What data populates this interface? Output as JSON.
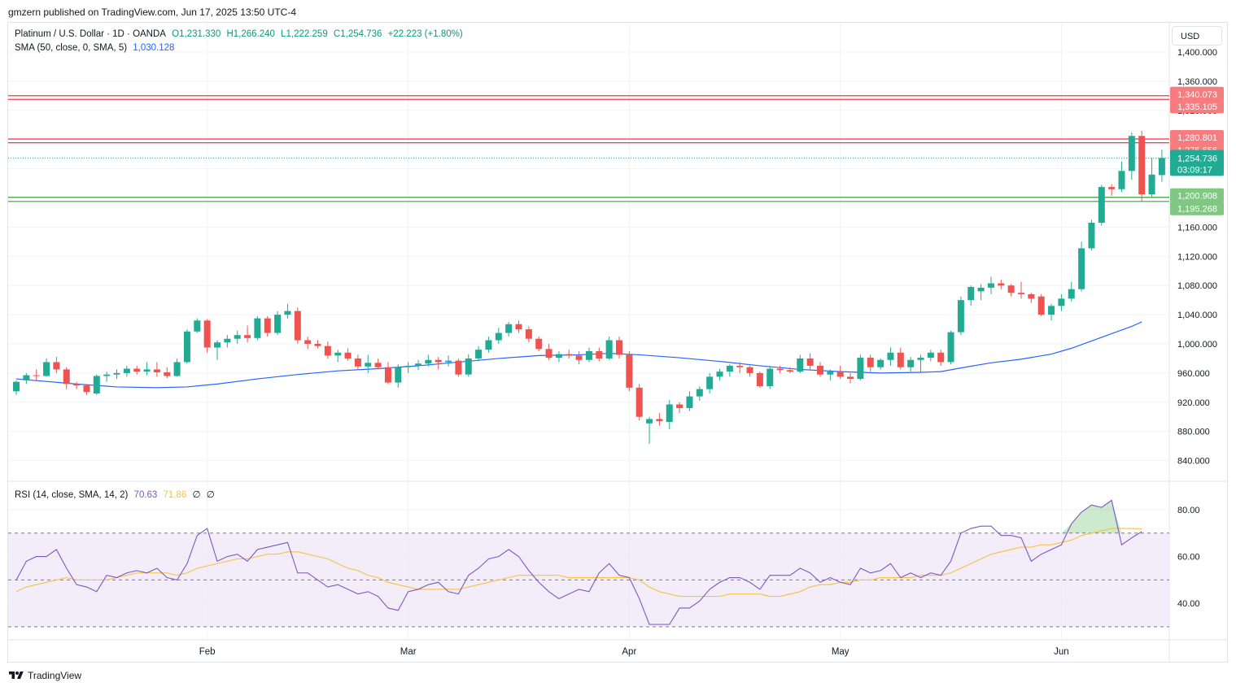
{
  "header": {
    "published_text": "gmzern published on TradingView.com, Jun 17, 2025 13:50 UTC-4"
  },
  "legend": {
    "symbol": "Platinum / U.S. Dollar · 1D · OANDA",
    "open": "O1,231.330",
    "high": "H1,266.240",
    "low": "L1,222.259",
    "close": "C1,254.736",
    "change": "+22.223 (+1.80%)",
    "sma_label": "SMA (50, close, 0, SMA, 5)",
    "sma_value": "1,030.128",
    "rsi_label": "RSI (14, close, SMA, 14, 2)",
    "rsi_value": "70.63",
    "rsi_sma_value": "71.86",
    "rsi_extra1": "∅",
    "rsi_extra2": "∅"
  },
  "currency_button": "USD",
  "footer": {
    "brand": "TradingView",
    "icon": "tradingview-logo-icon"
  },
  "colors": {
    "up": "#22ab94",
    "down": "#f23645",
    "down_candle": "#ef5350",
    "sma": "#2962ff",
    "rsi": "#7e57c2",
    "rsi_sma": "#f7c23f",
    "rsi_band": "#ede7f6",
    "resistance": "#f23645",
    "support": "#4caf50",
    "grid": "#f0f3fa"
  },
  "chart_data": [
    {
      "type": "candlestick",
      "title": "Platinum / U.S. Dollar · 1D · OANDA",
      "ylim": [
        810,
        1400
      ],
      "y_ticks": [
        840,
        880,
        920,
        960,
        1000,
        1040,
        1080,
        1120,
        1160,
        1320,
        1400
      ],
      "y_tick_labels": [
        "840.000",
        "880.000",
        "920.000",
        "960.000",
        "1,000.000",
        "1,040.000",
        "1,080.000",
        "1,120.000",
        "1,160.000",
        "1,320.000",
        "1,400.000"
      ],
      "x_labels": [
        {
          "label": "Feb",
          "index": 19
        },
        {
          "label": "Mar",
          "index": 39
        },
        {
          "label": "Apr",
          "index": 61
        },
        {
          "label": "May",
          "index": 82
        },
        {
          "label": "Jun",
          "index": 104
        }
      ],
      "candles": [
        [
          935,
          950,
          930,
          948
        ],
        [
          950,
          960,
          945,
          957
        ],
        [
          957,
          965,
          950,
          956
        ],
        [
          956,
          980,
          955,
          975
        ],
        [
          975,
          982,
          960,
          965
        ],
        [
          965,
          968,
          938,
          945
        ],
        [
          945,
          948,
          938,
          943
        ],
        [
          943,
          945,
          930,
          934
        ],
        [
          932,
          958,
          930,
          956
        ],
        [
          956,
          962,
          948,
          958
        ],
        [
          958,
          965,
          952,
          960
        ],
        [
          960,
          970,
          955,
          966
        ],
        [
          966,
          970,
          958,
          962
        ],
        [
          962,
          975,
          957,
          965
        ],
        [
          965,
          975,
          955,
          961
        ],
        [
          961,
          968,
          953,
          956
        ],
        [
          956,
          980,
          955,
          975
        ],
        [
          975,
          1020,
          973,
          1017
        ],
        [
          1017,
          1035,
          1015,
          1032
        ],
        [
          1032,
          1034,
          988,
          995
        ],
        [
          995,
          1005,
          978,
          1002
        ],
        [
          1002,
          1012,
          995,
          1007
        ],
        [
          1007,
          1018,
          1000,
          1012
        ],
        [
          1012,
          1025,
          1002,
          1008
        ],
        [
          1008,
          1038,
          1005,
          1035
        ],
        [
          1035,
          1038,
          1010,
          1015
        ],
        [
          1015,
          1045,
          1012,
          1040
        ],
        [
          1040,
          1055,
          1035,
          1045
        ],
        [
          1045,
          1050,
          1000,
          1005
        ],
        [
          1005,
          1010,
          993,
          1000
        ],
        [
          1000,
          1005,
          994,
          997
        ],
        [
          997,
          1003,
          980,
          984
        ],
        [
          984,
          992,
          975,
          988
        ],
        [
          988,
          994,
          977,
          980
        ],
        [
          980,
          985,
          965,
          969
        ],
        [
          969,
          985,
          960,
          974
        ],
        [
          974,
          980,
          965,
          968
        ],
        [
          968,
          975,
          945,
          947
        ],
        [
          947,
          972,
          940,
          968
        ],
        [
          968,
          975,
          960,
          970
        ],
        [
          970,
          978,
          964,
          973
        ],
        [
          973,
          985,
          969,
          978
        ],
        [
          978,
          982,
          965,
          975
        ],
        [
          975,
          984,
          969,
          977
        ],
        [
          977,
          980,
          955,
          958
        ],
        [
          958,
          986,
          955,
          980
        ],
        [
          980,
          997,
          976,
          992
        ],
        [
          992,
          1010,
          988,
          1005
        ],
        [
          1005,
          1022,
          1000,
          1015
        ],
        [
          1015,
          1030,
          1010,
          1027
        ],
        [
          1027,
          1032,
          1015,
          1020
        ],
        [
          1020,
          1024,
          1002,
          1007
        ],
        [
          1007,
          1010,
          990,
          993
        ],
        [
          993,
          1000,
          978,
          981
        ],
        [
          981,
          990,
          975,
          986
        ],
        [
          986,
          992,
          980,
          984
        ],
        [
          984,
          990,
          972,
          978
        ],
        [
          978,
          995,
          975,
          990
        ],
        [
          990,
          995,
          976,
          980
        ],
        [
          980,
          1010,
          978,
          1005
        ],
        [
          1005,
          1010,
          980,
          985
        ],
        [
          985,
          990,
          935,
          940
        ],
        [
          940,
          945,
          895,
          900
        ],
        [
          891,
          900,
          863,
          897
        ],
        [
          897,
          905,
          888,
          894
        ],
        [
          893,
          923,
          883,
          917
        ],
        [
          917,
          920,
          905,
          912
        ],
        [
          912,
          935,
          908,
          928
        ],
        [
          928,
          942,
          922,
          938
        ],
        [
          938,
          960,
          932,
          955
        ],
        [
          955,
          966,
          950,
          962
        ],
        [
          962,
          972,
          955,
          970
        ],
        [
          970,
          975,
          960,
          968
        ],
        [
          968,
          970,
          955,
          960
        ],
        [
          960,
          962,
          940,
          942
        ],
        [
          942,
          970,
          938,
          966
        ],
        [
          966,
          970,
          960,
          964
        ],
        [
          964,
          968,
          960,
          962
        ],
        [
          962,
          985,
          960,
          980
        ],
        [
          980,
          987,
          965,
          970
        ],
        [
          970,
          975,
          955,
          958
        ],
        [
          958,
          965,
          950,
          962
        ],
        [
          962,
          970,
          952,
          955
        ],
        [
          955,
          960,
          946,
          952
        ],
        [
          952,
          985,
          950,
          981
        ],
        [
          981,
          985,
          962,
          968
        ],
        [
          968,
          980,
          965,
          978
        ],
        [
          978,
          995,
          970,
          988
        ],
        [
          988,
          995,
          965,
          968
        ],
        [
          968,
          982,
          962,
          978
        ],
        [
          978,
          985,
          960,
          981
        ],
        [
          981,
          992,
          976,
          988
        ],
        [
          988,
          992,
          970,
          975
        ],
        [
          975,
          1018,
          972,
          1016
        ],
        [
          1016,
          1065,
          1012,
          1060
        ],
        [
          1060,
          1080,
          1052,
          1078
        ],
        [
          1072,
          1082,
          1060,
          1077
        ],
        [
          1077,
          1092,
          1068,
          1083
        ],
        [
          1083,
          1088,
          1075,
          1080
        ],
        [
          1080,
          1082,
          1065,
          1070
        ],
        [
          1070,
          1085,
          1062,
          1068
        ],
        [
          1068,
          1070,
          1056,
          1062
        ],
        [
          1065,
          1068,
          1038,
          1040
        ],
        [
          1040,
          1055,
          1032,
          1052
        ],
        [
          1052,
          1068,
          1045,
          1062
        ],
        [
          1062,
          1085,
          1058,
          1075
        ],
        [
          1075,
          1140,
          1072,
          1131
        ],
        [
          1131,
          1170,
          1128,
          1166
        ],
        [
          1166,
          1218,
          1162,
          1215
        ],
        [
          1215,
          1219,
          1203,
          1212
        ],
        [
          1212,
          1250,
          1208,
          1237
        ],
        [
          1237,
          1290,
          1225,
          1285
        ],
        [
          1285,
          1292,
          1195,
          1205
        ],
        [
          1205,
          1255,
          1200,
          1232
        ],
        [
          1231.33,
          1266.24,
          1222.259,
          1254.736
        ]
      ],
      "sma50": [
        [
          0,
          952
        ],
        [
          6,
          945
        ],
        [
          10,
          941
        ],
        [
          14,
          940
        ],
        [
          17,
          941
        ],
        [
          20,
          945
        ],
        [
          24,
          952
        ],
        [
          28,
          958
        ],
        [
          32,
          963
        ],
        [
          36,
          966
        ],
        [
          40,
          970
        ],
        [
          44,
          975
        ],
        [
          48,
          980
        ],
        [
          52,
          984
        ],
        [
          56,
          985
        ],
        [
          59,
          987
        ],
        [
          62,
          985
        ],
        [
          66,
          981
        ],
        [
          70,
          976
        ],
        [
          74,
          970
        ],
        [
          78,
          965
        ],
        [
          82,
          962
        ],
        [
          86,
          960
        ],
        [
          90,
          961
        ],
        [
          92,
          962
        ],
        [
          94,
          967
        ],
        [
          97,
          974
        ],
        [
          100,
          979
        ],
        [
          103,
          986
        ],
        [
          105,
          994
        ],
        [
          107,
          1004
        ],
        [
          109,
          1014
        ],
        [
          111,
          1024
        ],
        [
          112,
          1030.128
        ]
      ],
      "horizontal_levels": [
        {
          "value": 1340.073,
          "label": "1,340.073",
          "kind": "resistance"
        },
        {
          "value": 1335.105,
          "label": "1,335.105",
          "kind": "resistance"
        },
        {
          "value": 1280.801,
          "label": "1,280.801",
          "kind": "resistance"
        },
        {
          "value": 1275.656,
          "label": "1,275.656",
          "kind": "resistance"
        },
        {
          "value": 1254.736,
          "label": "1,254.736",
          "kind": "last-price",
          "sublabel": "03:09:17"
        },
        {
          "value": 1200.908,
          "label": "1,200.908",
          "kind": "support"
        },
        {
          "value": 1195.268,
          "label": "1,195.268",
          "kind": "support"
        }
      ]
    },
    {
      "type": "line",
      "title": "RSI (14, close, SMA, 14, 2)",
      "ylim": [
        25,
        90
      ],
      "y_ticks": [
        40,
        60,
        80
      ],
      "y_tick_labels": [
        "40.00",
        "60.00",
        "80.00"
      ],
      "band": [
        30,
        70
      ],
      "midline": 50,
      "series": [
        {
          "name": "RSI",
          "values": [
            50,
            58,
            60,
            60,
            63,
            55,
            48,
            47,
            45,
            52,
            51,
            53,
            54,
            53,
            55,
            51,
            50,
            57,
            69,
            72,
            58,
            60,
            61,
            58,
            63,
            64,
            65,
            66,
            53,
            53,
            50,
            47,
            48,
            46,
            44,
            45,
            43,
            38,
            37,
            45,
            46,
            48,
            49,
            45,
            44,
            52,
            55,
            59,
            60,
            63,
            60,
            54,
            49,
            45,
            42,
            44,
            46,
            45,
            53,
            57,
            52,
            51,
            42,
            31,
            31,
            31,
            38,
            38,
            41,
            46,
            49,
            51,
            51,
            49,
            46,
            52,
            52,
            52,
            55,
            53,
            49,
            51,
            49,
            48,
            55,
            53,
            54,
            57,
            51,
            53,
            51,
            53,
            52,
            58,
            70,
            72,
            73,
            73,
            69,
            69,
            68,
            58,
            61,
            63,
            65,
            74,
            79,
            82,
            81,
            84,
            65,
            68,
            70.63
          ]
        },
        {
          "name": "RSI SMA",
          "values": [
            45,
            47,
            48,
            49,
            50,
            51,
            50,
            50,
            50,
            50,
            51,
            52,
            53,
            53,
            53,
            53,
            52,
            53,
            55,
            56,
            57,
            58,
            59,
            59,
            60,
            61,
            61,
            62,
            62,
            61,
            60,
            59,
            57,
            55,
            54,
            52,
            51,
            49,
            48,
            47,
            46,
            46,
            46,
            46,
            46,
            47,
            48,
            49,
            50,
            51,
            52,
            52,
            52,
            52,
            52,
            51,
            51,
            51,
            51,
            51,
            51,
            51,
            50,
            47,
            45,
            44,
            43,
            43,
            43,
            43,
            43,
            44,
            44,
            44,
            44,
            43,
            43,
            44,
            45,
            47,
            48,
            48,
            49,
            49,
            50,
            50,
            51,
            51,
            51,
            51,
            52,
            52,
            52,
            53,
            55,
            57,
            59,
            61,
            62,
            63,
            64,
            64,
            65,
            65,
            66,
            67,
            69,
            70,
            71,
            72,
            72,
            72,
            71.86
          ]
        }
      ]
    }
  ]
}
